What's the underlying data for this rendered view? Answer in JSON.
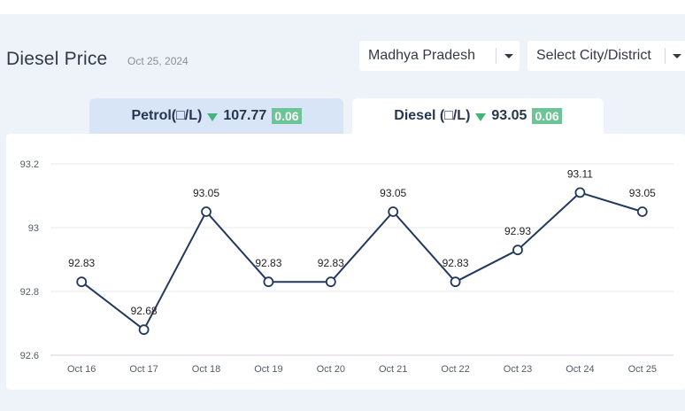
{
  "header": {
    "title": "Diesel Price",
    "date": "Oct 25, 2024"
  },
  "filters": {
    "state": "Madhya Pradesh",
    "city": "Select City/District"
  },
  "tabs": [
    {
      "label": "Petrol(□/L)",
      "price": "107.77",
      "change": "0.06",
      "trend": "down",
      "active": false
    },
    {
      "label": "Diesel (□/L)",
      "price": "93.05",
      "change": "0.06",
      "trend": "down",
      "active": true
    }
  ],
  "colors": {
    "line": "#22385e",
    "badge": "#6cc497",
    "trend_down": "#45b37e",
    "tab_inactive": "#d8e5f6"
  },
  "chart_data": {
    "type": "line",
    "categories": [
      "Oct 16",
      "Oct 17",
      "Oct 18",
      "Oct 19",
      "Oct 20",
      "Oct 21",
      "Oct 22",
      "Oct 23",
      "Oct 24",
      "Oct 25"
    ],
    "values": [
      92.83,
      92.68,
      93.05,
      92.83,
      92.83,
      93.05,
      92.83,
      92.93,
      93.11,
      93.05
    ],
    "value_labels": [
      "92.83",
      "92.68",
      "93.05",
      "92.83",
      "92.83",
      "93.05",
      "92.83",
      "92.93",
      "93.11",
      "93.05"
    ],
    "yticks": [
      92.6,
      92.8,
      93,
      93.2
    ],
    "ytick_labels": [
      "92.6",
      "92.8",
      "93",
      "93.2"
    ],
    "ylim": [
      92.6,
      93.2
    ],
    "grid": true,
    "title": "",
    "xlabel": "",
    "ylabel": ""
  }
}
